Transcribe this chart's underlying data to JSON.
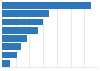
{
  "values": [
    130,
    68,
    60,
    52,
    36,
    28,
    22,
    11
  ],
  "bar_color": "#2d77bb",
  "background_color": "#ffffff",
  "grid_color": "#dddddd",
  "xlim": [
    0,
    140
  ],
  "tick_color": "#aaaaaa"
}
